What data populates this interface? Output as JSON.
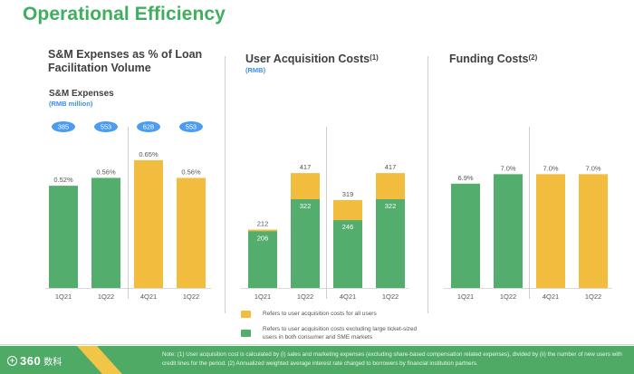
{
  "page": {
    "title": "Operational Efficiency"
  },
  "colors": {
    "green": "#53ad6c",
    "yellow": "#f2bd3f",
    "blue_pill": "#4c9cf0",
    "title_green": "#3fae5e",
    "unit_blue": "#3c8ff0"
  },
  "panels": {
    "sm": {
      "title_line1": "S&M Expenses as % of Loan",
      "title_line2": "Facilitation Volume",
      "sub_title": "S&M Expenses",
      "unit": "(RMB million)"
    },
    "uac": {
      "title": "User Acquisition Costs",
      "title_sup": "(1)",
      "unit": "(RMB)"
    },
    "funding": {
      "title": "Funding Costs",
      "title_sup": "(2)"
    }
  },
  "chart_data": [
    {
      "id": "sm",
      "type": "bar",
      "title": "S&M Expenses as % of Loan Facilitation Volume",
      "categories": [
        "1Q21",
        "1Q22",
        "4Q21",
        "1Q22"
      ],
      "values": [
        0.52,
        0.56,
        0.65,
        0.56
      ],
      "value_labels": [
        "0.52%",
        "0.56%",
        "0.65%",
        "0.56%"
      ],
      "bar_colors": [
        "green",
        "green",
        "yellow",
        "yellow"
      ],
      "pill_labels": [
        "385",
        "553",
        "628",
        "553"
      ],
      "pill_caption": "S&M Expenses (RMB million)",
      "ylim": [
        0,
        0.82
      ]
    },
    {
      "id": "uac",
      "type": "bar",
      "stacked": true,
      "title": "User Acquisition Costs (RMB)",
      "categories": [
        "1Q21",
        "1Q22",
        "4Q21",
        "1Q22"
      ],
      "series": [
        {
          "name": "Refers to user acquisition costs excluding large ticket-sized users in both consumer and SME markets",
          "color": "green",
          "values": [
            206,
            322,
            246,
            322
          ]
        },
        {
          "name": "Refers to user acquisition costs for all users",
          "color": "yellow",
          "values": [
            212,
            417,
            319,
            417
          ]
        }
      ],
      "ylim": [
        0,
        585
      ]
    },
    {
      "id": "funding",
      "type": "bar",
      "title": "Funding Costs",
      "categories": [
        "1Q21",
        "1Q22",
        "4Q21",
        "1Q22"
      ],
      "values": [
        6.9,
        7.0,
        7.0,
        7.0
      ],
      "value_labels": [
        "6.9%",
        "7.0%",
        "7.0%",
        "7.0%"
      ],
      "bar_colors": [
        "green",
        "green",
        "yellow",
        "yellow"
      ],
      "ylim": [
        5.8,
        7.5
      ]
    }
  ],
  "legend": {
    "yellow_label": "Refers to user acquisition costs for all users",
    "green_label_line1": "Refers to user acquisition costs excluding large ticket-sized",
    "green_label_line2": "users in both consumer and SME markets"
  },
  "footer": {
    "logo_num": "360",
    "logo_cn": "数科",
    "note_line1": "Note: (1) User acquisition cost is calculated by (i) sales and marketing expenses (excluding share-based compensation related expenses), divided by (ii) the number of new users with",
    "note_line2": "credit lines for the period. (2) Annualized weighted average interest rate charged to borrowers by financial institution partners."
  }
}
